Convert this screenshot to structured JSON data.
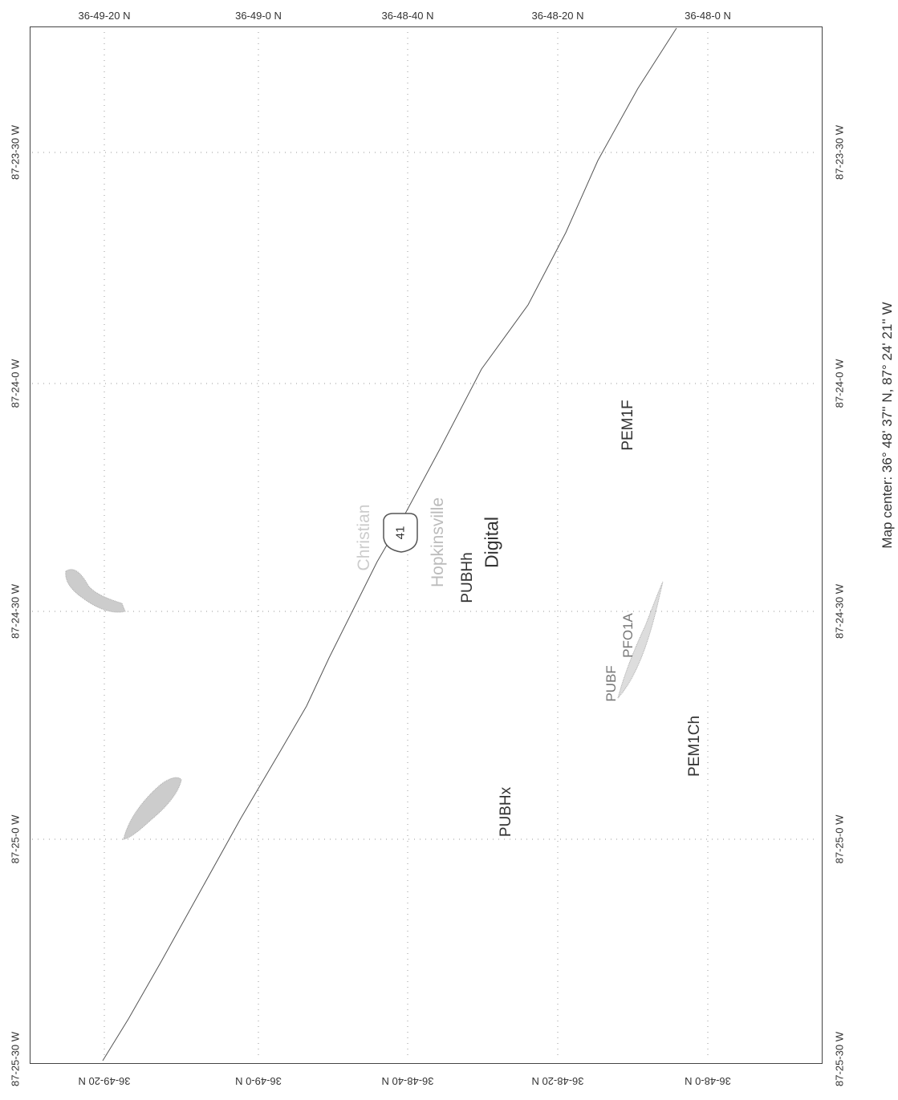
{
  "lat_labels": [
    "36-49-20 N",
    "36-49-0 N",
    "36-48-40 N",
    "36-48-20 N",
    "36-48-0 N"
  ],
  "lon_labels": [
    "87-23-30 W",
    "87-24-0 W",
    "87-24-30 W",
    "87-25-0 W",
    "87-25-30 W"
  ],
  "map_center": "Map center: 36° 48' 37'' N, 87° 24' 21'' W",
  "wetland_labels": {
    "pem1f": "PEM1F",
    "pubhh": "PUBHh",
    "digital": "Digital",
    "hopkinsville": "Hopkinsville",
    "christian": "Christian",
    "pubf": "PUBF",
    "pfo1a": "PFO1A",
    "pem1ch": "PEM1Ch",
    "pubhx": "PUBHx"
  },
  "route_shield": "41",
  "colors": {
    "road": "#555555",
    "grid": "#999999",
    "wetland": "#aaaaaa",
    "faded_text": "#bbbbbb"
  }
}
